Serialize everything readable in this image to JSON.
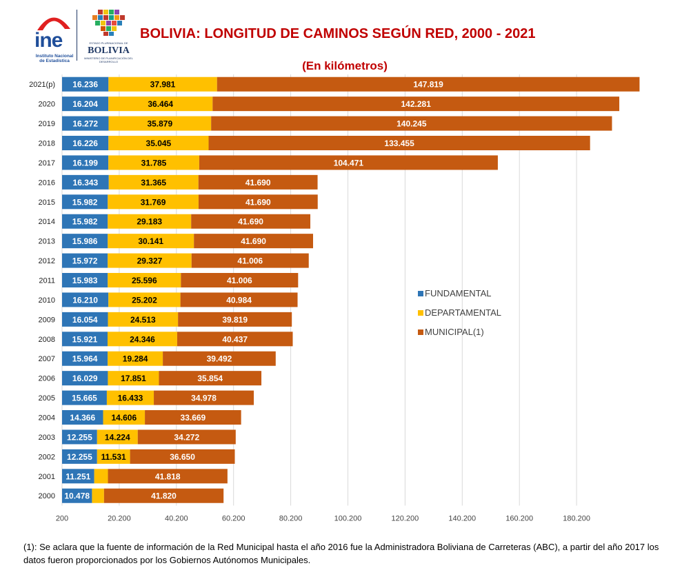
{
  "header": {
    "ine_logo_text": "ine",
    "ine_subtext": "Instituto Nacional de Estadística",
    "bolivia_top_text": "ESTADO PLURINACIONAL DE",
    "bolivia_text": "BOLIVIA",
    "bolivia_subtext": "MINISTERIO DE PLANIFICACIÓN DEL DESARROLLO"
  },
  "colors": {
    "fundamental": "#2e75b6",
    "departamental": "#ffc000",
    "municipal": "#c55a11"
  },
  "chart_data": {
    "type": "bar",
    "orientation": "horizontal",
    "stacked": true,
    "title": "BOLIVIA: LONGITUD DE CAMINOS SEGÚN RED, 2000 - 2021",
    "subtitle": "(En kilómetros)",
    "categories": [
      "2021(p)",
      "2020",
      "2019",
      "2018",
      "2017",
      "2016",
      "2015",
      "2014",
      "2013",
      "2012",
      "2011",
      "2010",
      "2009",
      "2008",
      "2007",
      "2006",
      "2005",
      "2004",
      "2003",
      "2002",
      "2001",
      "2000"
    ],
    "series": [
      {
        "name": "FUNDAMENTAL",
        "values": [
          16236,
          16204,
          16272,
          16226,
          16199,
          16343,
          15982,
          15982,
          15986,
          15972,
          15983,
          16210,
          16054,
          15921,
          15964,
          16029,
          15665,
          14366,
          12255,
          12255,
          11251,
          10478
        ],
        "labels": [
          "16.236",
          "16.204",
          "16.272",
          "16.226",
          "16.199",
          "16.343",
          "15.982",
          "15.982",
          "15.986",
          "15.972",
          "15.983",
          "16.210",
          "16.054",
          "15.921",
          "15.964",
          "16.029",
          "15.665",
          "14.366",
          "12.255",
          "12.255",
          "11.251",
          "10.478"
        ]
      },
      {
        "name": "DEPARTAMENTAL",
        "values": [
          37981,
          36464,
          35879,
          35045,
          31785,
          31365,
          31769,
          29183,
          30141,
          29327,
          25596,
          25202,
          24513,
          24346,
          19284,
          17851,
          16433,
          14606,
          14224,
          11531,
          4800,
          4200
        ],
        "labels": [
          "37.981",
          "36.464",
          "35.879",
          "35.045",
          "31.785",
          "31.365",
          "31.769",
          "29.183",
          "30.141",
          "29.327",
          "25.596",
          "25.202",
          "24.513",
          "24.346",
          "19.284",
          "17.851",
          "16.433",
          "14.606",
          "14.224",
          "11.531",
          "",
          ""
        ]
      },
      {
        "name": "MUNICIPAL(1)",
        "values": [
          147819,
          142281,
          140245,
          133455,
          104471,
          41690,
          41690,
          41690,
          41690,
          41006,
          41006,
          40984,
          39819,
          40437,
          39492,
          35854,
          34978,
          33669,
          34272,
          36650,
          41818,
          41820
        ],
        "labels": [
          "147.819",
          "142.281",
          "140.245",
          "133.455",
          "104.471",
          "41.690",
          "41.690",
          "41.690",
          "41.690",
          "41.006",
          "41.006",
          "40.984",
          "39.819",
          "40.437",
          "39.492",
          "35.854",
          "34.978",
          "33.669",
          "34.272",
          "36.650",
          "41.818",
          "41.820"
        ]
      }
    ],
    "xlim": [
      200,
      200200
    ],
    "xticks": [
      "200",
      "20.200",
      "40.200",
      "60.200",
      "80.200",
      "100.200",
      "120.200",
      "140.200",
      "160.200",
      "180.200"
    ],
    "grid": true,
    "legend_position": "right-center"
  },
  "footnote": "(1): Se aclara que la fuente de información de la Red Municipal hasta el año 2016 fue la Administradora  Boliviana de Carreteras (ABC), a partir del año 2017 los datos fueron  proporcionados por los Gobiernos Autónomos Municipales."
}
